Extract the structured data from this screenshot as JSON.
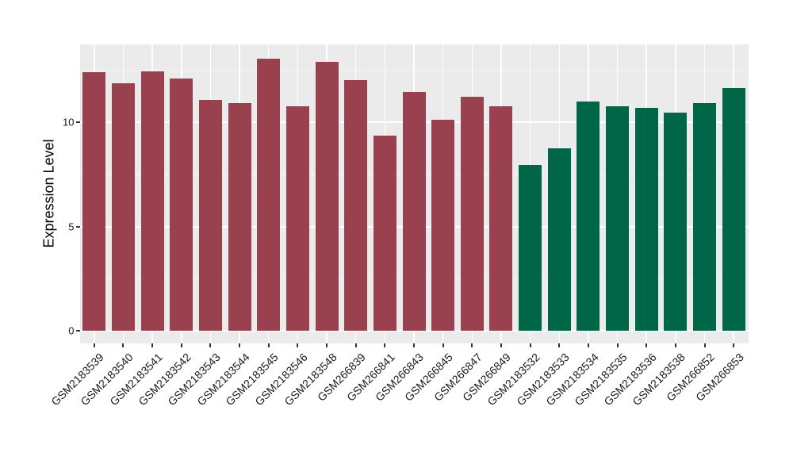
{
  "chart_data": {
    "type": "bar",
    "title": "",
    "xlabel": "",
    "ylabel": "Expression Level",
    "categories": [
      "GSM2183539",
      "GSM2183540",
      "GSM2183541",
      "GSM2183542",
      "GSM2183543",
      "GSM2183544",
      "GSM2183545",
      "GSM2183546",
      "GSM2183548",
      "GSM266839",
      "GSM266841",
      "GSM266843",
      "GSM266845",
      "GSM266847",
      "GSM266849",
      "GSM2183532",
      "GSM2183533",
      "GSM2183534",
      "GSM2183535",
      "GSM2183536",
      "GSM2183538",
      "GSM266852",
      "GSM266853"
    ],
    "values": [
      12.4,
      11.85,
      12.45,
      12.1,
      11.05,
      10.9,
      13.05,
      10.75,
      12.9,
      12.0,
      9.35,
      11.45,
      10.1,
      11.2,
      10.75,
      7.95,
      8.75,
      11.0,
      10.75,
      10.7,
      10.45,
      10.9,
      11.65
    ],
    "groups": [
      "group1",
      "group1",
      "group1",
      "group1",
      "group1",
      "group1",
      "group1",
      "group1",
      "group1",
      "group1",
      "group1",
      "group1",
      "group1",
      "group1",
      "group1",
      "group2",
      "group2",
      "group2",
      "group2",
      "group2",
      "group2",
      "group2",
      "group2"
    ],
    "group_colors": {
      "group1": "#9A4150",
      "group2": "#006648"
    },
    "y_ticks": [
      0,
      5,
      10
    ],
    "y_tick_labels": [
      "0",
      "5",
      "10"
    ],
    "y_minor_ticks": [
      2.5,
      7.5,
      12.5
    ],
    "ylim": [
      0,
      13.7
    ],
    "grid": true,
    "legend": false,
    "colors": {
      "figure_bg": "#FFFFFF",
      "panel_bg": "#EBEBEB",
      "grid_major": "#FFFFFF",
      "grid_minor": "#F5F5F5",
      "axis_text": "#1A1A1A",
      "tick_mark": "#333333"
    }
  }
}
